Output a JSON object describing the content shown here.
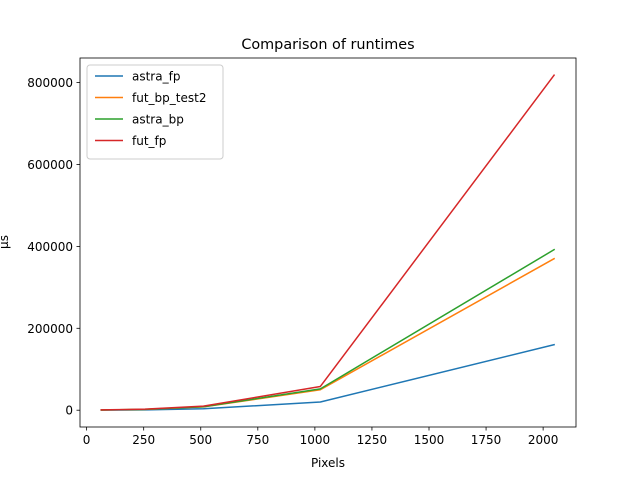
{
  "chart_data": {
    "type": "line",
    "title": "Comparison of runtimes",
    "xlabel": "Pixels",
    "ylabel": "μs",
    "xlim": [
      -29,
      2144
    ],
    "ylim": [
      -41000,
      860000
    ],
    "xticks": [
      0,
      250,
      500,
      750,
      1000,
      1250,
      1500,
      1750,
      2000
    ],
    "xtick_labels": [
      "0",
      "250",
      "500",
      "750",
      "1000",
      "1250",
      "1500",
      "1750",
      "2000"
    ],
    "yticks": [
      0,
      200000,
      400000,
      600000,
      800000
    ],
    "ytick_labels": [
      "0",
      "200000",
      "400000",
      "600000",
      "800000"
    ],
    "grid": false,
    "legend_position": "top-left",
    "x": [
      64,
      256,
      512,
      1024,
      2048
    ],
    "series": [
      {
        "name": "astra_fp",
        "color": "#1f77b4",
        "values": [
          200,
          800,
          3500,
          20000,
          160000
        ]
      },
      {
        "name": "fut_bp_test2",
        "color": "#ff7f0e",
        "values": [
          500,
          2000,
          8000,
          50000,
          370000
        ]
      },
      {
        "name": "astra_bp",
        "color": "#2ca02c",
        "values": [
          500,
          2000,
          8500,
          52000,
          392000
        ]
      },
      {
        "name": "fut_fp",
        "color": "#d62728",
        "values": [
          800,
          2500,
          10000,
          58000,
          818000
        ]
      }
    ]
  }
}
